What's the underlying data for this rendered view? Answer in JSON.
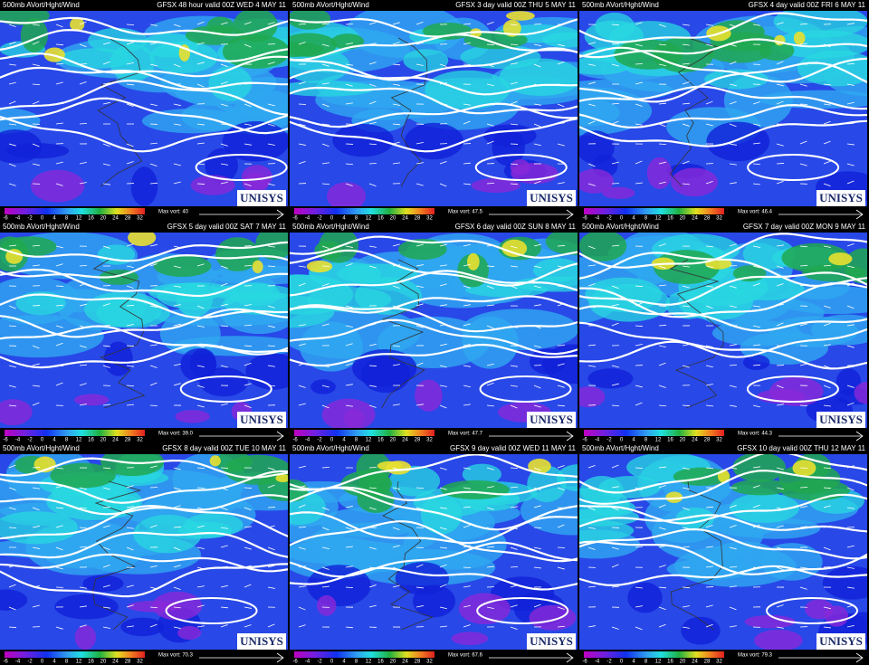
{
  "product": "500mb AVort/Hght/Wind",
  "logo": "UNISYS",
  "colorbar_labels": [
    "-6",
    "-4",
    "-2",
    "0",
    "4",
    "8",
    "12",
    "16",
    "20",
    "24",
    "28",
    "32"
  ],
  "panels": [
    {
      "valid": "GFSX 48 hour valid 00Z WED  4 MAY 11",
      "max_vort": "Max vort: 40"
    },
    {
      "valid": "GFSX 3 day valid 00Z THU  5 MAY 11",
      "max_vort": "Max vort: 47.5"
    },
    {
      "valid": "GFSX 4 day valid 00Z FRI  6 MAY 11",
      "max_vort": "Max vort: 46.4"
    },
    {
      "valid": "GFSX 5 day valid 00Z SAT  7 MAY 11",
      "max_vort": "Max vort: 39.0"
    },
    {
      "valid": "GFSX 6 day valid 00Z SUN  8 MAY 11",
      "max_vort": "Max vort: 47.7"
    },
    {
      "valid": "GFSX 7 day valid 00Z MON  9 MAY 11",
      "max_vort": "Max vort: 44.3"
    },
    {
      "valid": "GFSX 8 day valid 00Z TUE 10 MAY 11",
      "max_vort": "Max vort: 70.3"
    },
    {
      "valid": "GFSX 9 day valid 00Z WED 11 MAY 11",
      "max_vort": "Max vort: 67.6"
    },
    {
      "valid": "GFSX 10 day valid 00Z THU 12 MAY 11",
      "max_vort": "Max vort: 79.3"
    }
  ]
}
